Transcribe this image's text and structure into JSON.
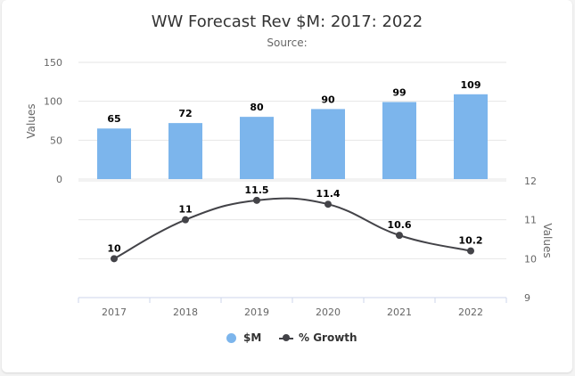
{
  "chart": {
    "title": "WW Forecast Rev $M: 2017: 2022",
    "subtitle": "Source:",
    "legend": {
      "bar_label": "$M",
      "line_label": "% Growth"
    }
  },
  "colors": {
    "bar": "#7cb5ec",
    "line": "#434348",
    "grid": "#e6e6e6"
  },
  "chart_data": {
    "type": "bar",
    "title": "WW Forecast Rev $M: 2017: 2022",
    "subtitle": "Source:",
    "categories": [
      "2017",
      "2018",
      "2019",
      "2020",
      "2021",
      "2022"
    ],
    "series": [
      {
        "name": "$M",
        "type": "bar",
        "values": [
          65,
          72,
          80,
          90,
          99,
          109
        ]
      },
      {
        "name": "% Growth",
        "type": "line",
        "values": [
          10,
          11,
          11.5,
          11.4,
          10.6,
          10.2
        ]
      }
    ],
    "top_panel": {
      "ylabel": "Values",
      "ylim": [
        0,
        150
      ],
      "yticks": [
        "0",
        "50",
        "100",
        "150"
      ]
    },
    "bottom_panel": {
      "ylabel": "Values",
      "ylim": [
        9,
        12
      ],
      "yticks": [
        "9",
        "10",
        "11",
        "12"
      ],
      "axis_side": "right"
    },
    "grid": true,
    "legend_position": "bottom-center"
  }
}
